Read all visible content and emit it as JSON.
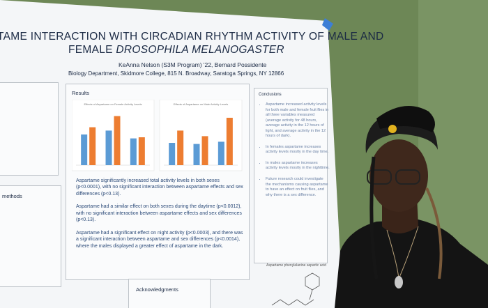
{
  "poster": {
    "title_line1": "TAME INTERACTION WITH CIRCADIAN RHYTHM ACTIVITY OF MALE AND",
    "title_line2_prefix": "FEMALE ",
    "title_line2_italic": "DROSOPHILA MELANOGASTER",
    "authors": "KeAnna Nelson (S3M Program) '22, Bernard Possidente",
    "affiliation": "Biology Department, Skidmore College, 815 N. Broadway, Saratoga Springs, NY 12866",
    "methods_heading": "methods",
    "results": {
      "heading": "Results",
      "charts": [
        {
          "title": "Effects of Aspartame on Female Activity Levels",
          "series": [
            {
              "color": "#5b9bd5",
              "values": [
                55,
                62,
                48
              ]
            },
            {
              "color": "#ed7d31",
              "values": [
                68,
                88,
                50
              ]
            }
          ]
        },
        {
          "title": "Effects of Aspartame on Male Activity Levels",
          "series": [
            {
              "color": "#5b9bd5",
              "values": [
                40,
                38,
                42
              ]
            },
            {
              "color": "#ed7d31",
              "values": [
                62,
                52,
                85
              ]
            }
          ]
        }
      ],
      "paragraphs": [
        "Aspartame significantly increased total activity levels in both sexes (p<0.0001), with no significant interaction between aspartame effects and sex differences (p<0.13).",
        "Aspartame had a similar effect on both sexes during the daytime (p<0.0012), with no significant interaction between aspartame effects and sex differences (p<0.13).",
        "Aspartame had a significant effect on night activity (p<0.0003), and there was a significant interaction between aspartame and sex differences (p<0.0014), where the males displayed a greater effect of aspartame in the dark."
      ]
    },
    "conclusions": {
      "heading": "Conclusions",
      "bullets": [
        "Aspartame increased activity levels for both male and female fruit flies in all three variables measured (average activity for 48 hours, average activity in the 12 hours of light, and average activity in the 12 hours of dark).",
        "In females aspartame increases activity levels mostly in the day time.",
        "In males aspartame increases activity levels mostly in the nighttime.",
        "Future research could investigate the mechanisms causing aspartame to have an effect on fruit flies, and why there is a sex difference."
      ]
    },
    "molecule_caption": "Aspartame phenylalanine aspartic acid",
    "acknowledgments_heading": "Acknowledgments"
  }
}
